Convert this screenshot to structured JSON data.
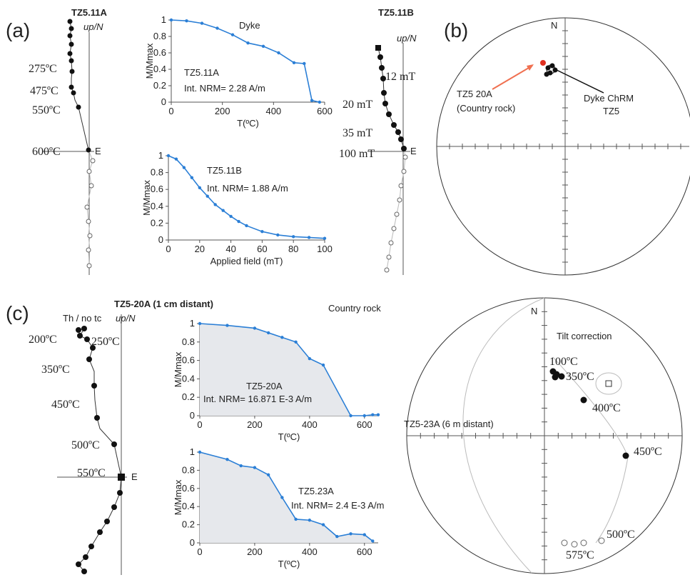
{
  "chart_data": [
    {
      "type": "line",
      "title": "Dyke",
      "ylabel": "M/Mmax",
      "xlabel": "T(ºC)",
      "annotations": [
        "TZ5.11A",
        "Int. NRM= 2.28 A/m"
      ],
      "color": "#2b7fd6",
      "fill": false,
      "x": [
        0,
        60,
        120,
        180,
        240,
        300,
        360,
        420,
        480,
        520,
        550,
        580
      ],
      "values": [
        1,
        0.99,
        0.96,
        0.9,
        0.82,
        0.72,
        0.68,
        0.6,
        0.48,
        0.47,
        0.02,
        0
      ],
      "xlim": [
        0,
        600
      ],
      "ylim": [
        0,
        1
      ],
      "xticks": [
        0,
        200,
        400,
        600
      ],
      "yticks": [
        0,
        0.2,
        0.4,
        0.6,
        0.8,
        1
      ]
    },
    {
      "type": "line",
      "ylabel": "M/Mmax",
      "xlabel": "Applied field (mT)",
      "annotations": [
        "TZ5.11B",
        "Int. NRM= 1.88 A/m"
      ],
      "color": "#2b7fd6",
      "fill": false,
      "x": [
        0,
        5,
        10,
        15,
        20,
        25,
        30,
        35,
        40,
        45,
        50,
        60,
        70,
        80,
        90,
        100
      ],
      "values": [
        1,
        0.96,
        0.86,
        0.74,
        0.62,
        0.52,
        0.42,
        0.35,
        0.28,
        0.22,
        0.17,
        0.1,
        0.06,
        0.04,
        0.03,
        0.02
      ],
      "xlim": [
        0,
        100
      ],
      "ylim": [
        0,
        1
      ],
      "xticks": [
        0,
        20,
        40,
        60,
        80,
        100
      ],
      "yticks": [
        0,
        0.2,
        0.4,
        0.6,
        0.8,
        1
      ]
    },
    {
      "type": "line",
      "ylabel": "M/Mmax",
      "xlabel": "T(ºC)",
      "annotations": [
        "TZ5-20A",
        "Int. NRM= 16.871 E-3 A/m"
      ],
      "color": "#2b7fd6",
      "fill": true,
      "x": [
        0,
        100,
        200,
        250,
        300,
        350,
        400,
        450,
        550,
        600,
        630,
        650
      ],
      "values": [
        1,
        0.98,
        0.95,
        0.9,
        0.85,
        0.8,
        0.62,
        0.55,
        0,
        0,
        0.01,
        0.01
      ],
      "xlim": [
        0,
        650
      ],
      "ylim": [
        0,
        1
      ],
      "xticks": [
        0,
        200,
        400,
        600
      ],
      "yticks": [
        0,
        0.2,
        0.4,
        0.6,
        0.8,
        1
      ]
    },
    {
      "type": "line",
      "ylabel": "M/Mmax",
      "xlabel": "T(ºC)",
      "annotations": [
        "TZ5.23A",
        "Int. NRM= 2.4 E-3 A/m"
      ],
      "color": "#2b7fd6",
      "fill": true,
      "x": [
        0,
        100,
        150,
        200,
        250,
        300,
        350,
        400,
        450,
        500,
        550,
        600,
        630
      ],
      "values": [
        1,
        0.92,
        0.85,
        0.83,
        0.75,
        0.5,
        0.26,
        0.25,
        0.2,
        0.07,
        0.1,
        0.09,
        0.02
      ],
      "xlim": [
        0,
        650
      ],
      "ylim": [
        0,
        1
      ],
      "xticks": [
        0,
        200,
        400,
        600
      ],
      "yticks": [
        0,
        0.2,
        0.4,
        0.6,
        0.8,
        1
      ]
    }
  ],
  "figure": {
    "labels": {
      "a": "(a)",
      "b": "(b)",
      "c": "(c)"
    },
    "zijderveld": [
      {
        "title": "TZ5.11A",
        "axis": "up/N",
        "east": "E",
        "steps": [
          "275ºC",
          "475ºC",
          "550ºC",
          "600ºC"
        ]
      },
      {
        "title": "TZ5.11B",
        "axis": "up/N",
        "east": "E",
        "steps": [
          "12 mT",
          "20 mT",
          "35 mT",
          "100 mT"
        ]
      },
      {
        "title": "TZ5-20A (1 cm distant)",
        "subtitle": "Th / no tc",
        "axis": "up/N",
        "east": "E",
        "steps": [
          "200ºC",
          "250ºC",
          "350ºC",
          "450ºC",
          "500ºC",
          "550ºC"
        ]
      }
    ],
    "stereonets": [
      {
        "north": "N",
        "labels": [
          "TZ5 20A",
          "(Country rock)",
          "Dyke ChRM",
          "TZ5"
        ]
      },
      {
        "north": "N",
        "title": "Country rock",
        "specimen": "TZ5-23A (6 m distant)",
        "note": "Tilt correction",
        "steps": [
          "100ºC",
          "350ºC",
          "400ºC",
          "450ºC",
          "500ºC",
          "575ºC"
        ]
      }
    ]
  }
}
